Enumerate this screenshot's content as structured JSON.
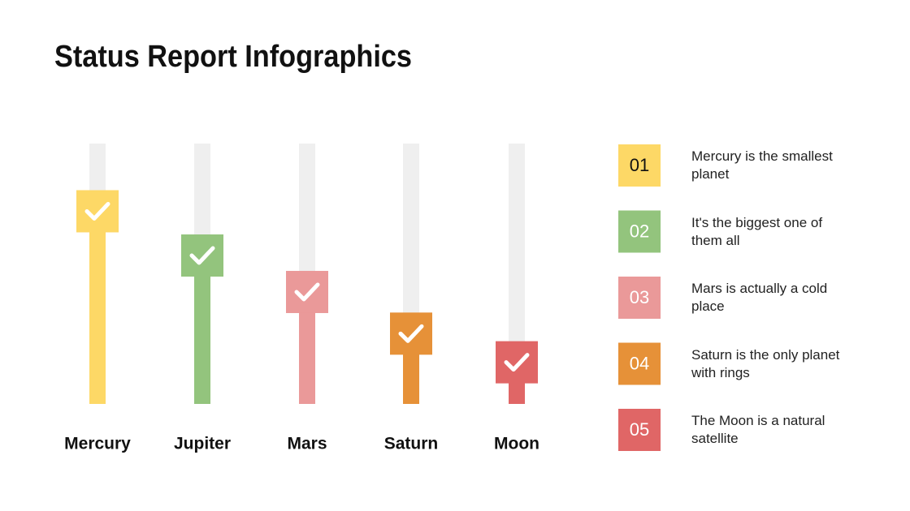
{
  "chart_data": {
    "type": "bar",
    "title": "Status Report Infographics",
    "categories": [
      "Mercury",
      "Jupiter",
      "Mars",
      "Saturn",
      "Moon"
    ],
    "values": [
      74,
      57,
      43,
      27,
      16
    ],
    "colors": [
      "#fdd866",
      "#93c47d",
      "#ea9999",
      "#e69138",
      "#e06666"
    ],
    "ylim": [
      0,
      100
    ],
    "notes": [
      {
        "label": "01",
        "text": "Mercury is the smallest planet"
      },
      {
        "label": "02",
        "text": "It's the biggest one of them all"
      },
      {
        "label": "03",
        "text": "Mars is actually a cold place"
      },
      {
        "label": "04",
        "text": "Saturn is the only planet with rings"
      },
      {
        "label": "05",
        "text": "The Moon is a natural satellite"
      }
    ]
  }
}
